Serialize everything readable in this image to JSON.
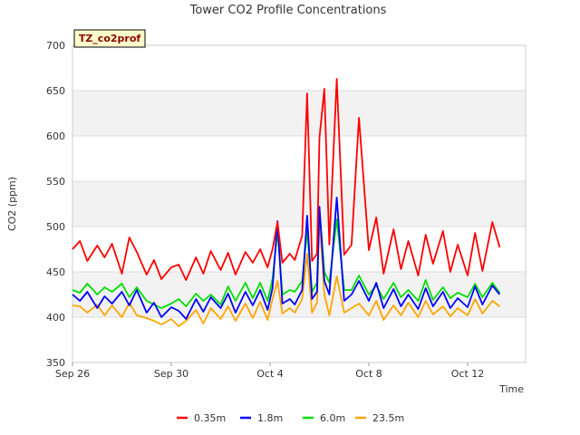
{
  "chart_data": {
    "type": "line",
    "title": "Tower CO2 Profile Concentrations",
    "tag": "TZ_co2prof",
    "xlabel": "Time",
    "ylabel": "CO2 (ppm)",
    "ylim": [
      350,
      700
    ],
    "yticks": [
      350,
      400,
      450,
      500,
      550,
      600,
      650,
      700
    ],
    "xlim": [
      0,
      18
    ],
    "xticks": [
      {
        "value": 0,
        "label": "Sep 26"
      },
      {
        "value": 4,
        "label": "Sep 30"
      },
      {
        "value": 8,
        "label": "Oct 4"
      },
      {
        "value": 12,
        "label": "Oct 8"
      },
      {
        "value": 16,
        "label": "Oct 12"
      }
    ],
    "grid": true,
    "legend_position": "bottom",
    "series": [
      {
        "name": "0.35m",
        "color": "#ff0000",
        "x": [
          0,
          0.3,
          0.6,
          1,
          1.3,
          1.6,
          2,
          2.3,
          2.6,
          3,
          3.3,
          3.6,
          4,
          4.3,
          4.6,
          5,
          5.3,
          5.6,
          6,
          6.3,
          6.6,
          7,
          7.3,
          7.6,
          7.9,
          8.1,
          8.3,
          8.5,
          8.8,
          9,
          9.3,
          9.5,
          9.7,
          9.9,
          10,
          10.2,
          10.4,
          10.7,
          11,
          11.3,
          11.6,
          12,
          12.3,
          12.6,
          13,
          13.3,
          13.6,
          14,
          14.3,
          14.6,
          15,
          15.3,
          15.6,
          16,
          16.3,
          16.6,
          17,
          17.3
        ],
        "y": [
          475,
          484,
          462,
          479,
          466,
          481,
          448,
          488,
          472,
          447,
          463,
          442,
          455,
          458,
          441,
          466,
          448,
          473,
          452,
          471,
          447,
          472,
          460,
          475,
          455,
          475,
          505,
          460,
          470,
          463,
          490,
          647,
          462,
          470,
          598,
          652,
          480,
          663,
          469,
          480,
          620,
          474,
          510,
          448,
          497,
          453,
          484,
          446,
          491,
          459,
          495,
          450,
          480,
          446,
          493,
          451,
          505,
          477
        ]
      },
      {
        "name": "1.8m",
        "color": "#0000ff",
        "x": [
          0,
          0.3,
          0.6,
          1,
          1.3,
          1.6,
          2,
          2.3,
          2.6,
          3,
          3.3,
          3.6,
          4,
          4.3,
          4.6,
          5,
          5.3,
          5.6,
          6,
          6.3,
          6.6,
          7,
          7.3,
          7.6,
          7.9,
          8.1,
          8.3,
          8.5,
          8.8,
          9,
          9.3,
          9.5,
          9.7,
          9.9,
          10,
          10.2,
          10.4,
          10.7,
          11,
          11.3,
          11.6,
          12,
          12.3,
          12.6,
          13,
          13.3,
          13.6,
          14,
          14.3,
          14.6,
          15,
          15.3,
          15.6,
          16,
          16.3,
          16.6,
          17,
          17.3
        ],
        "y": [
          425,
          418,
          428,
          410,
          423,
          415,
          428,
          413,
          430,
          405,
          416,
          400,
          411,
          407,
          398,
          420,
          406,
          422,
          410,
          426,
          405,
          428,
          413,
          430,
          408,
          432,
          506,
          415,
          420,
          414,
          430,
          512,
          420,
          428,
          522,
          440,
          425,
          532,
          418,
          425,
          440,
          418,
          438,
          410,
          431,
          412,
          425,
          409,
          432,
          412,
          428,
          410,
          421,
          411,
          434,
          414,
          435,
          425
        ]
      },
      {
        "name": "6.0m",
        "color": "#00dd00",
        "x": [
          0,
          0.3,
          0.6,
          1,
          1.3,
          1.6,
          2,
          2.3,
          2.6,
          3,
          3.3,
          3.6,
          4,
          4.3,
          4.6,
          5,
          5.3,
          5.6,
          6,
          6.3,
          6.6,
          7,
          7.3,
          7.6,
          7.9,
          8.1,
          8.3,
          8.5,
          8.8,
          9,
          9.3,
          9.5,
          9.7,
          9.9,
          10,
          10.2,
          10.4,
          10.7,
          11,
          11.3,
          11.6,
          12,
          12.3,
          12.6,
          13,
          13.3,
          13.6,
          14,
          14.3,
          14.6,
          15,
          15.3,
          15.6,
          16,
          16.3,
          16.6,
          17,
          17.3
        ],
        "y": [
          430,
          427,
          437,
          425,
          433,
          428,
          437,
          422,
          433,
          418,
          414,
          410,
          415,
          420,
          412,
          426,
          418,
          425,
          414,
          434,
          418,
          438,
          421,
          438,
          418,
          442,
          495,
          425,
          430,
          428,
          440,
          495,
          428,
          438,
          520,
          450,
          438,
          508,
          430,
          430,
          446,
          425,
          435,
          420,
          438,
          422,
          430,
          418,
          441,
          419,
          433,
          421,
          427,
          422,
          437,
          422,
          438,
          427
        ]
      },
      {
        "name": "23.5m",
        "color": "#ffa500",
        "x": [
          0,
          0.3,
          0.6,
          1,
          1.3,
          1.6,
          2,
          2.3,
          2.6,
          3,
          3.3,
          3.6,
          4,
          4.3,
          4.6,
          5,
          5.3,
          5.6,
          6,
          6.3,
          6.6,
          7,
          7.3,
          7.6,
          7.9,
          8.1,
          8.3,
          8.5,
          8.8,
          9,
          9.3,
          9.5,
          9.7,
          9.9,
          10,
          10.2,
          10.4,
          10.7,
          11,
          11.3,
          11.6,
          12,
          12.3,
          12.6,
          13,
          13.3,
          13.6,
          14,
          14.3,
          14.6,
          15,
          15.3,
          15.6,
          16,
          16.3,
          16.6,
          17,
          17.3
        ],
        "y": [
          413,
          412,
          405,
          414,
          402,
          413,
          400,
          416,
          402,
          399,
          396,
          392,
          398,
          390,
          396,
          408,
          393,
          410,
          398,
          412,
          396,
          415,
          399,
          417,
          397,
          420,
          440,
          404,
          410,
          405,
          420,
          470,
          405,
          416,
          510,
          425,
          402,
          445,
          405,
          410,
          415,
          402,
          418,
          397,
          413,
          402,
          416,
          400,
          418,
          403,
          412,
          401,
          410,
          402,
          420,
          404,
          418,
          412
        ]
      }
    ]
  }
}
